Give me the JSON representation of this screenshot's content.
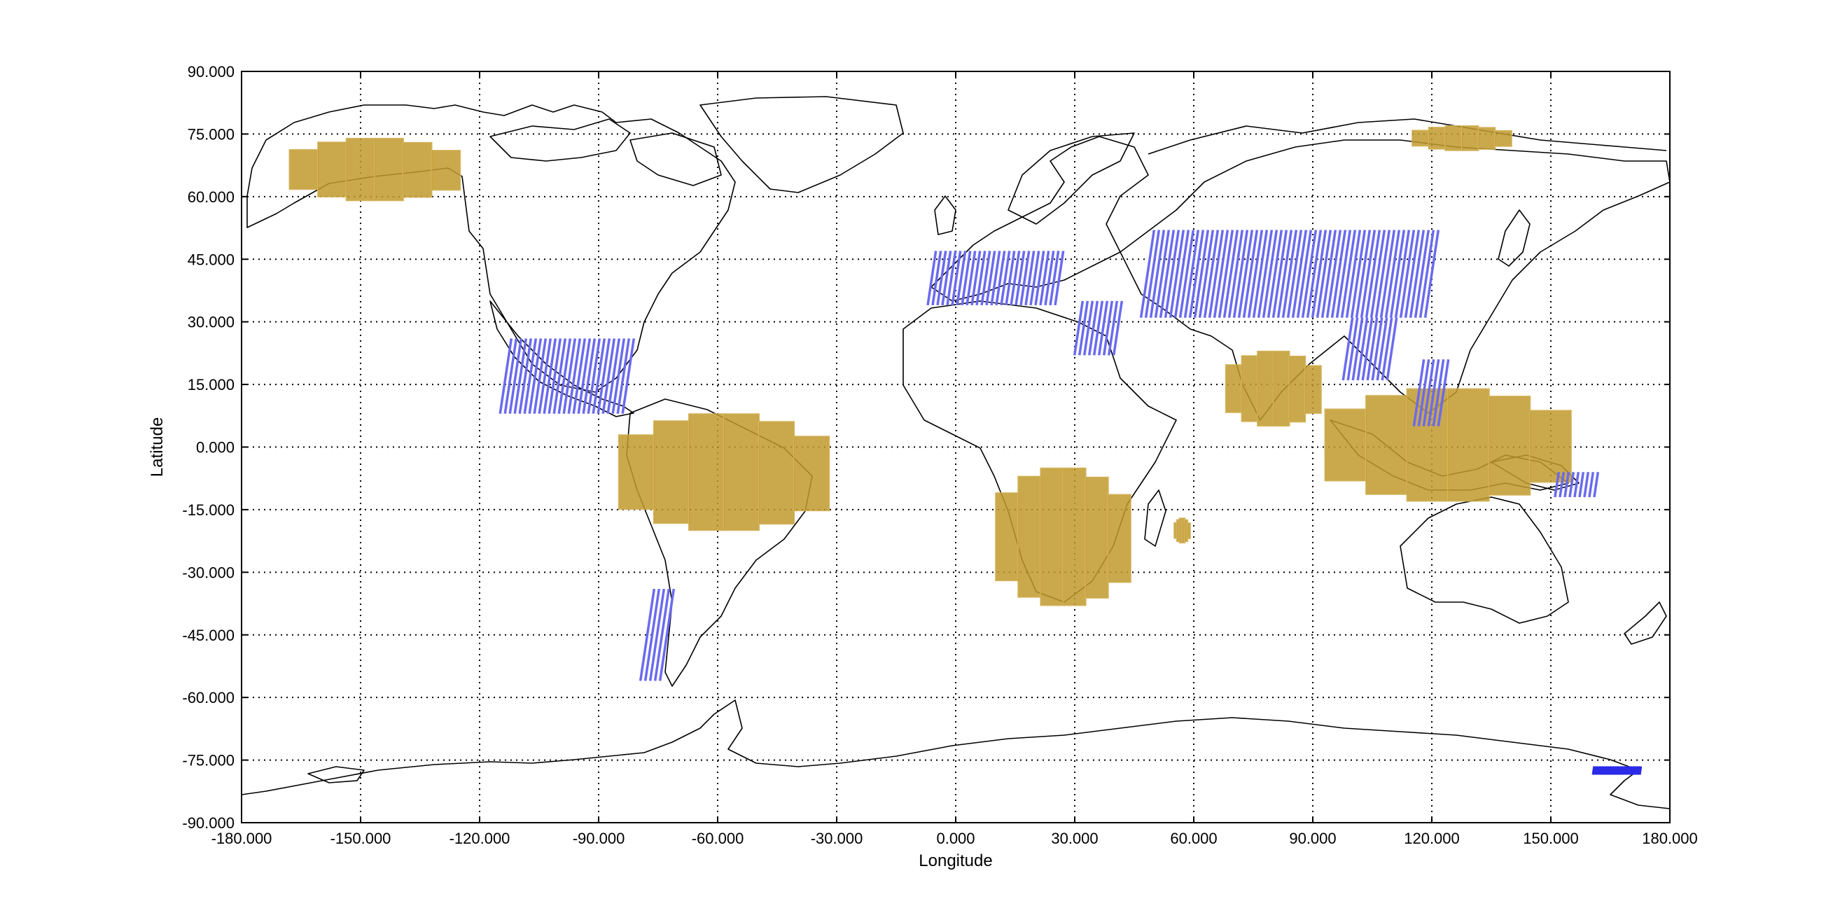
{
  "chart_data": {
    "type": "map",
    "xlabel": "Longitude",
    "ylabel": "Latitude",
    "xlim": [
      -180,
      180
    ],
    "ylim": [
      -90,
      90
    ],
    "x_ticks": [
      "-180.000",
      "-150.000",
      "-120.000",
      "-90.000",
      "-60.000",
      "-30.000",
      "0.000",
      "30.000",
      "60.000",
      "90.000",
      "120.000",
      "150.000",
      "180.000"
    ],
    "y_ticks": [
      "90.000",
      "75.000",
      "60.000",
      "45.000",
      "30.000",
      "15.000",
      "0.000",
      "-15.000",
      "-30.000",
      "-45.000",
      "-60.000",
      "-75.000",
      "-90.000"
    ],
    "grid": true,
    "colors": {
      "coverage_fill": "#c19a2e",
      "swath_lines": "#6a6af0",
      "dense_swath": "#2a2ae8",
      "coastline": "#000000"
    },
    "coverage_regions": [
      {
        "lon": [
          -168,
          -125
        ],
        "lat": [
          59,
          74
        ]
      },
      {
        "lon": [
          -85,
          -32
        ],
        "lat": [
          -20,
          8
        ]
      },
      {
        "lon": [
          10,
          44
        ],
        "lat": [
          -38,
          -5
        ]
      },
      {
        "lon": [
          55,
          59
        ],
        "lat": [
          -23,
          -17
        ]
      },
      {
        "lon": [
          68,
          92
        ],
        "lat": [
          5,
          23
        ]
      },
      {
        "lon": [
          93,
          155
        ],
        "lat": [
          -13,
          14
        ]
      },
      {
        "lon": [
          115,
          140
        ],
        "lat": [
          71,
          77
        ]
      }
    ],
    "swath_regions": [
      {
        "lon": [
          -112,
          -80
        ],
        "lat": [
          8,
          26
        ]
      },
      {
        "lon": [
          -76,
          -70
        ],
        "lat": [
          -56,
          -34
        ]
      },
      {
        "lon": [
          -5,
          28
        ],
        "lat": [
          34,
          47
        ]
      },
      {
        "lon": [
          32,
          42
        ],
        "lat": [
          22,
          35
        ]
      },
      {
        "lon": [
          50,
          122
        ],
        "lat": [
          31,
          52
        ]
      },
      {
        "lon": [
          100,
          112
        ],
        "lat": [
          16,
          31
        ]
      },
      {
        "lon": [
          118,
          125
        ],
        "lat": [
          5,
          21
        ]
      },
      {
        "lon": [
          152,
          162
        ],
        "lat": [
          -12,
          -6
        ]
      }
    ],
    "dense_swath_regions": [
      {
        "lon": [
          161,
          173
        ],
        "lat": [
          -78.5,
          -76.5
        ]
      }
    ]
  }
}
